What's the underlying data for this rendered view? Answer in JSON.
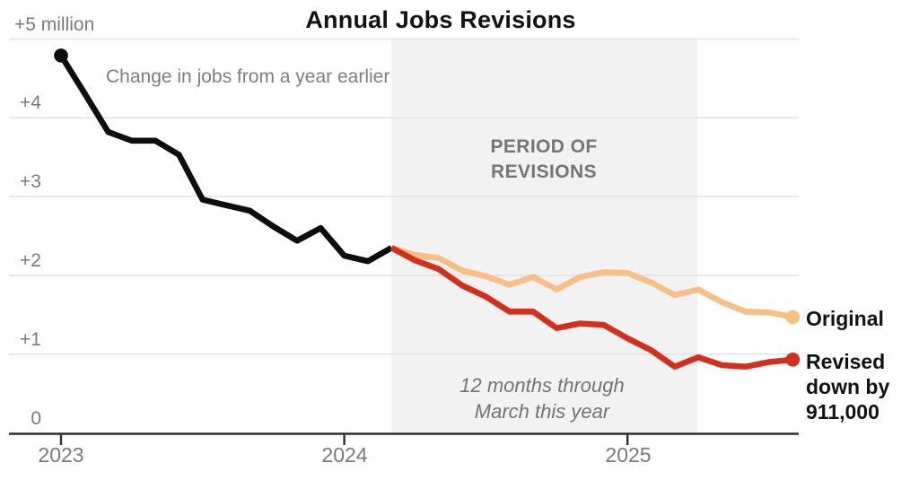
{
  "title": "Annual Jobs Revisions",
  "subtitle": "Change in jobs from a year earlier",
  "annotations": {
    "period_band_label_line1": "PERIOD OF",
    "period_band_label_line2": "REVISIONS",
    "note_line1": "12 months through",
    "note_line2": "March this year"
  },
  "legend": {
    "original_label": "Original",
    "revised_line1": "Revised",
    "revised_line2": "down by",
    "revised_line3": "911,000"
  },
  "y_axis": {
    "top_label": "+5 million",
    "labels": [
      "+4",
      "+3",
      "+2",
      "+1",
      "0"
    ]
  },
  "x_axis": {
    "labels": [
      "2023",
      "2024",
      "2025"
    ]
  },
  "colors": {
    "black_series": "#0d0d0d",
    "original_series": "#f7be86",
    "revised_series": "#d2301c",
    "band_fill": "#f2f2f2",
    "gridline": "#e3e3e3",
    "axis": "#2e2e2e"
  },
  "chart_data": {
    "type": "line",
    "title": "Annual Jobs Revisions",
    "subtitle": "Change in jobs from a year earlier",
    "x_unit": "months since January 2023 (monthly data)",
    "y_unit": "millions of jobs, change from a year earlier",
    "ylim": [
      0,
      5.3
    ],
    "y_ticks": [
      0,
      1,
      2,
      3,
      4,
      5
    ],
    "x_ticks": [
      {
        "label": "2023",
        "month": 0
      },
      {
        "label": "2024",
        "month": 12
      },
      {
        "label": "2025",
        "month": 24
      }
    ],
    "revision_band_months": [
      14,
      26.96
    ],
    "revision_band_note": "12 months through March this year",
    "series": [
      {
        "name": "Change in jobs (unrevised history)",
        "color": "#0d0d0d",
        "start_month": 0,
        "marker": "first",
        "values": [
          4.79,
          4.31,
          3.82,
          3.71,
          3.71,
          3.53,
          2.96,
          2.89,
          2.82,
          2.62,
          2.44,
          2.6,
          2.25,
          2.18,
          2.35
        ]
      },
      {
        "name": "Original",
        "color": "#f7be86",
        "start_month": 14,
        "marker": "last",
        "values": [
          2.35,
          2.26,
          2.22,
          2.06,
          1.99,
          1.88,
          1.98,
          1.82,
          1.98,
          2.04,
          2.03,
          1.91,
          1.75,
          1.82,
          1.66,
          1.54,
          1.53,
          1.47
        ]
      },
      {
        "name": "Revised down by 911,000",
        "color": "#d2301c",
        "start_month": 14,
        "marker": "last",
        "values": [
          2.35,
          2.19,
          2.08,
          1.87,
          1.73,
          1.54,
          1.54,
          1.33,
          1.39,
          1.37,
          1.2,
          1.05,
          0.84,
          0.96,
          0.86,
          0.84,
          0.9,
          0.93
        ]
      }
    ],
    "legend_position": "right"
  }
}
